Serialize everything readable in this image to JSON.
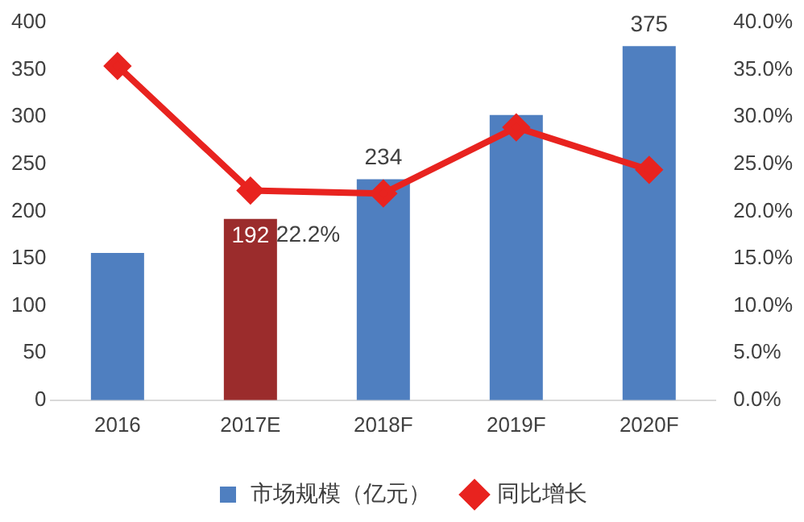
{
  "chart_data": {
    "type": "bar",
    "categories": [
      "2016",
      "2017E",
      "2018F",
      "2019F",
      "2020F"
    ],
    "series": [
      {
        "name": "市场规模（亿元）",
        "colors": [
          "#4f7fc0",
          "#9b2c2c",
          "#4f7fc0",
          "#4f7fc0",
          "#4f7fc0"
        ],
        "values": [
          156,
          192,
          234,
          302,
          375
        ],
        "value_labels": [
          null,
          "192",
          "234",
          null,
          "375"
        ]
      },
      {
        "name": "同比增长",
        "type": "line",
        "axis": "y2",
        "color": "#e8231f",
        "values": [
          35.4,
          22.2,
          21.9,
          28.9,
          24.4
        ],
        "value_labels": [
          null,
          "22.2%",
          null,
          null,
          null
        ],
        "marker": "diamond"
      }
    ],
    "ylim": [
      0,
      400
    ],
    "yticks": [
      0,
      50,
      100,
      150,
      200,
      250,
      300,
      350,
      400
    ],
    "y2lim": [
      0,
      40
    ],
    "y2ticks": [
      {
        "value": 0,
        "label": "0.0%"
      },
      {
        "value": 5,
        "label": "5.0%"
      },
      {
        "value": 10,
        "label": "10.0%"
      },
      {
        "value": 15,
        "label": "15.0%"
      },
      {
        "value": 20,
        "label": "20.0%"
      },
      {
        "value": 25,
        "label": "25.0%"
      },
      {
        "value": 30,
        "label": "30.0%"
      },
      {
        "value": 35,
        "label": "35.0%"
      },
      {
        "value": 40,
        "label": "40.0%"
      }
    ],
    "grid": false,
    "legend": "bottom"
  }
}
